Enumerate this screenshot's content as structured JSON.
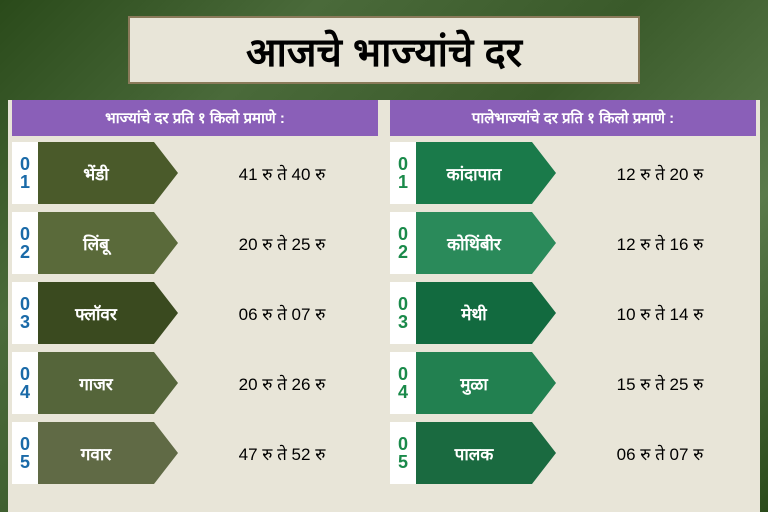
{
  "title": "आजचे भाज्यांचे दर",
  "colors": {
    "header_fill": "#8a5fb8",
    "page_bg": "#e8e5d8",
    "left_shades": [
      "#4a5a2a",
      "#5a6a3a",
      "#3a4a1f",
      "#55653a",
      "#606a45"
    ],
    "right_shades": [
      "#1a7a4a",
      "#2a8a5a",
      "#126a3f",
      "#228050",
      "#1a6a40"
    ],
    "left_num_color": "#1a6aa8",
    "right_num_color": "#1a8a4a"
  },
  "columns": [
    {
      "side": "left",
      "header": "भाज्यांचे दर  प्रति १ किलो प्रमाणे :",
      "rows": [
        {
          "n1": "0",
          "n2": "1",
          "label": "भेंडी",
          "price": "41 रु ते 40 रु"
        },
        {
          "n1": "0",
          "n2": "2",
          "label": "लिंबू",
          "price": "20 रु ते 25 रु"
        },
        {
          "n1": "0",
          "n2": "3",
          "label": "फ्लॉवर",
          "price": "06 रु ते 07 रु"
        },
        {
          "n1": "0",
          "n2": "4",
          "label": "गाजर",
          "price": "20 रु ते 26 रु"
        },
        {
          "n1": "0",
          "n2": "5",
          "label": "गवार",
          "price": "47 रु ते 52 रु"
        }
      ]
    },
    {
      "side": "right",
      "header": "पालेभाज्यांचे दर  प्रति १ किलो प्रमाणे :",
      "rows": [
        {
          "n1": "0",
          "n2": "1",
          "label": "कांदापात",
          "price": "12 रु ते 20 रु"
        },
        {
          "n1": "0",
          "n2": "2",
          "label": "कोथिंबीर",
          "price": "12 रु ते 16 रु"
        },
        {
          "n1": "0",
          "n2": "3",
          "label": "मेथी",
          "price": "10 रु ते 14 रु"
        },
        {
          "n1": "0",
          "n2": "4",
          "label": "मुळा",
          "price": "15 रु ते 25 रु"
        },
        {
          "n1": "0",
          "n2": "5",
          "label": "पालक",
          "price": "06 रु ते 07 रु"
        }
      ]
    }
  ]
}
